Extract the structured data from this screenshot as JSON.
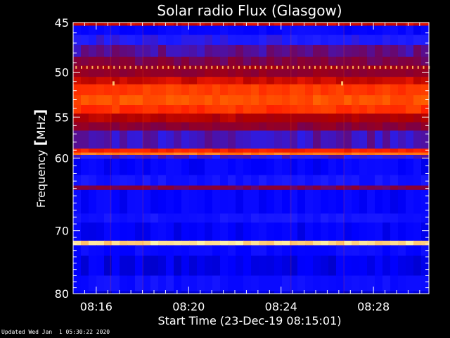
{
  "chart_data": {
    "type": "heatmap",
    "title": "Solar radio Flux (Glasgow)",
    "xlabel": "Start Time (23-Dec-19 08:15:01)",
    "ylabel_main": "Frequency ",
    "ylabel_unit_open": "[",
    "ylabel_unit": "MHz",
    "ylabel_unit_close": "]",
    "x_range_minutes_after_0815": [
      0.0,
      15.4
    ],
    "x_ticks": [
      {
        "label": "08:16",
        "minutes": 1.0
      },
      {
        "label": "08:20",
        "minutes": 5.0
      },
      {
        "label": "08:24",
        "minutes": 9.0
      },
      {
        "label": "08:28",
        "minutes": 13.0
      }
    ],
    "y_range_mhz": [
      45,
      80
    ],
    "y_scale": "log",
    "y_ticks": [
      45,
      50,
      55,
      60,
      70,
      80
    ],
    "colormap": [
      "#000080",
      "#0000ff",
      "#2020ff",
      "#800040",
      "#b00000",
      "#ff2000",
      "#ff6000",
      "#ffa040",
      "#ffffc0"
    ],
    "bands": [
      {
        "from": 45.0,
        "to": 45.3,
        "level": 0.55
      },
      {
        "from": 45.3,
        "to": 46.2,
        "level": 0.15
      },
      {
        "from": 46.2,
        "to": 47.2,
        "level": 0.25
      },
      {
        "from": 47.2,
        "to": 48.4,
        "level": 0.32
      },
      {
        "from": 48.4,
        "to": 49.3,
        "level": 0.38
      },
      {
        "from": 49.3,
        "to": 49.7,
        "level": 0.45
      },
      {
        "from": 49.7,
        "to": 50.5,
        "level": 0.42
      },
      {
        "from": 50.5,
        "to": 51.3,
        "level": 0.55
      },
      {
        "from": 51.3,
        "to": 52.5,
        "level": 0.68
      },
      {
        "from": 52.5,
        "to": 53.6,
        "level": 0.72
      },
      {
        "from": 53.6,
        "to": 54.6,
        "level": 0.66
      },
      {
        "from": 54.6,
        "to": 55.6,
        "level": 0.5
      },
      {
        "from": 55.6,
        "to": 56.6,
        "level": 0.4
      },
      {
        "from": 56.6,
        "to": 58.8,
        "level": 0.3
      },
      {
        "from": 58.8,
        "to": 59.3,
        "level": 0.62
      },
      {
        "from": 59.3,
        "to": 59.6,
        "level": 0.8
      },
      {
        "from": 59.6,
        "to": 60.1,
        "level": 0.28
      },
      {
        "from": 60.1,
        "to": 62.2,
        "level": 0.14
      },
      {
        "from": 62.2,
        "to": 63.6,
        "level": 0.2
      },
      {
        "from": 63.6,
        "to": 64.2,
        "level": 0.38
      },
      {
        "from": 64.2,
        "to": 67.5,
        "level": 0.14
      },
      {
        "from": 67.5,
        "to": 68.8,
        "level": 0.2
      },
      {
        "from": 68.8,
        "to": 71.5,
        "level": 0.13
      },
      {
        "from": 71.5,
        "to": 72.2,
        "level": 0.95
      },
      {
        "from": 72.2,
        "to": 73.8,
        "level": 0.16
      },
      {
        "from": 73.8,
        "to": 77.0,
        "level": 0.11
      },
      {
        "from": 77.0,
        "to": 79.6,
        "level": 0.18
      },
      {
        "from": 79.6,
        "to": 80.0,
        "level": 0.08
      }
    ]
  },
  "footer": {
    "updated": "Updated Wed Jan  1 05:30:22 2020"
  }
}
